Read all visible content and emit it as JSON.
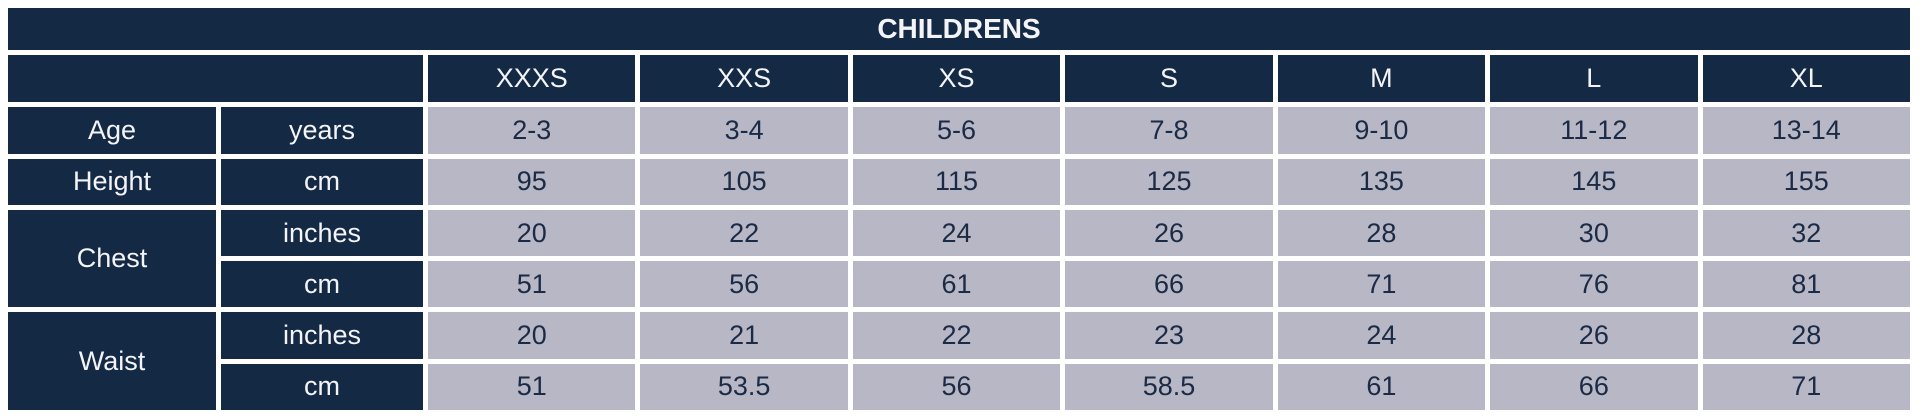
{
  "colors": {
    "navy": "#132944",
    "cell": "#b7b7c5",
    "cell-text": "#1b2a45",
    "header-text": "#f4f4f8",
    "page-bg": "#ffffff"
  },
  "chart_data": {
    "type": "table",
    "title": "CHILDRENS",
    "column_headers": [
      "XXXS",
      "XXS",
      "XS",
      "S",
      "M",
      "L",
      "XL"
    ],
    "rows": [
      {
        "label": "Age",
        "unit": "years",
        "values": [
          "2-3",
          "3-4",
          "5-6",
          "7-8",
          "9-10",
          "11-12",
          "13-14"
        ]
      },
      {
        "label": "Height",
        "unit": "cm",
        "values": [
          "95",
          "105",
          "115",
          "125",
          "135",
          "145",
          "155"
        ]
      },
      {
        "label": "Chest",
        "unit": "inches",
        "values": [
          "20",
          "22",
          "24",
          "26",
          "28",
          "30",
          "32"
        ]
      },
      {
        "label": "Chest",
        "unit": "cm",
        "values": [
          "51",
          "56",
          "61",
          "66",
          "71",
          "76",
          "81"
        ]
      },
      {
        "label": "Waist",
        "unit": "inches",
        "values": [
          "20",
          "21",
          "22",
          "23",
          "24",
          "26",
          "28"
        ]
      },
      {
        "label": "Waist",
        "unit": "cm",
        "values": [
          "51",
          "53.5",
          "56",
          "58.5",
          "61",
          "66",
          "71"
        ]
      }
    ]
  }
}
